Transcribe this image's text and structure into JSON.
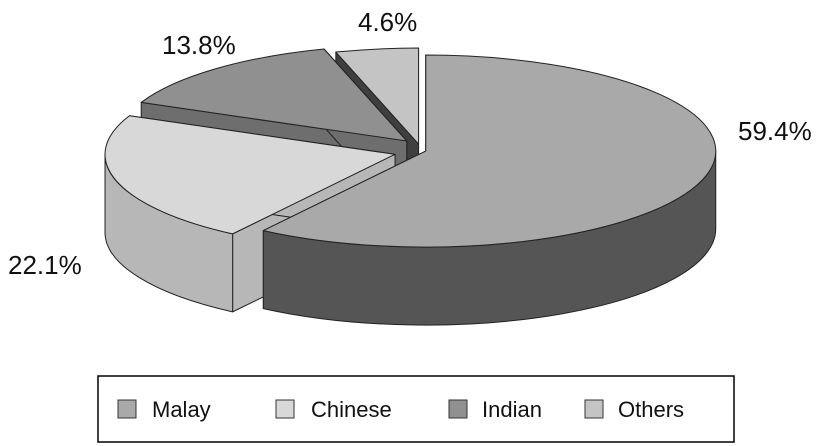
{
  "chart_data": {
    "type": "pie",
    "style": "exploded-3d",
    "categories": [
      "Malay",
      "Chinese",
      "Indian",
      "Others"
    ],
    "values": [
      59.4,
      22.1,
      13.8,
      4.6
    ],
    "labels": [
      "59.4%",
      "22.1%",
      "13.8%",
      "4.6%"
    ],
    "title": "",
    "legend": {
      "placement": "bottom",
      "entries": [
        "Malay",
        "Chinese",
        "Indian",
        "Others"
      ]
    },
    "colors": {
      "Malay": "#a9a9a9",
      "Chinese": "#d8d8d8",
      "Indian": "#909090",
      "Others": "#c4c4c4"
    },
    "side_colors": {
      "Malay": "#555555",
      "Chinese": "#b7b7b7",
      "Indian": "#6e6e6e",
      "Others": "#3f3f3f"
    }
  }
}
